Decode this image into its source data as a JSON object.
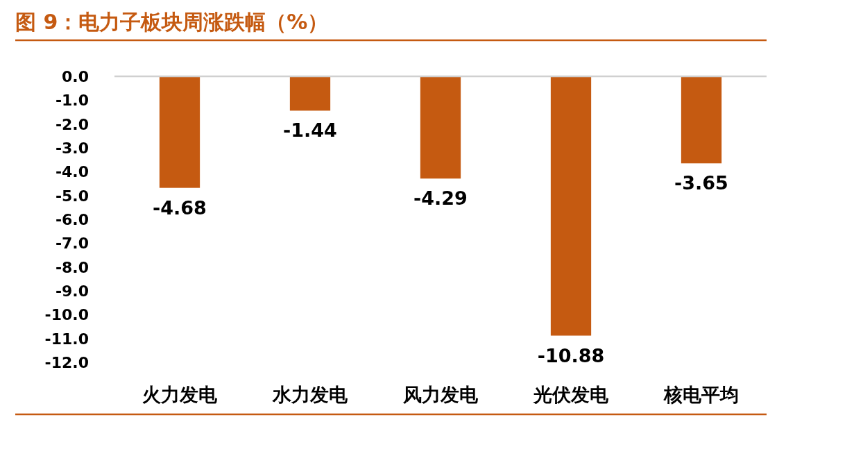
{
  "chart_data": {
    "type": "bar",
    "title": "图 9：电力子板块周涨跌幅（%）",
    "categories": [
      "火力发电",
      "水力发电",
      "风力发电",
      "光伏发电",
      "核电平均"
    ],
    "values": [
      -4.68,
      -1.44,
      -4.29,
      -10.88,
      -3.65
    ],
    "color": "#c55a11",
    "ylim": [
      -12,
      0
    ],
    "yticks": [
      {
        "value": 0,
        "label": "0.0"
      },
      {
        "value": -1,
        "label": "-1.0"
      },
      {
        "value": -2,
        "label": "-2.0"
      },
      {
        "value": -3,
        "label": "-3.0"
      },
      {
        "value": -4,
        "label": "-4.0"
      },
      {
        "value": -5,
        "label": "-5.0"
      },
      {
        "value": -6,
        "label": "-6.0"
      },
      {
        "value": -7,
        "label": "-7.0"
      },
      {
        "value": -8,
        "label": "-8.0"
      },
      {
        "value": -9,
        "label": "-9.0"
      },
      {
        "value": -10,
        "label": "-10.0"
      },
      {
        "value": -11,
        "label": "-11.0"
      },
      {
        "value": -12,
        "label": "-12.0"
      }
    ],
    "data_labels": true
  }
}
